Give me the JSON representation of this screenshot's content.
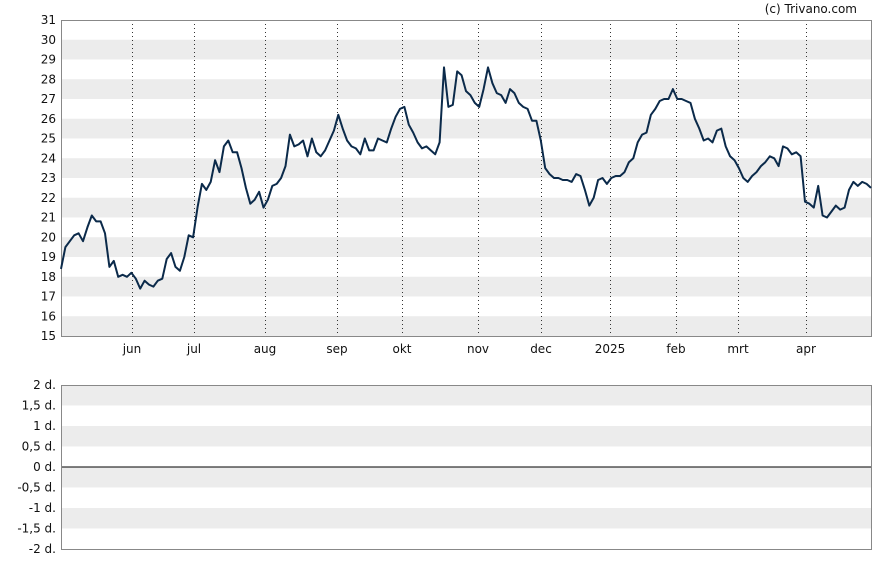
{
  "credit": "(c) Trivano.com",
  "colors": {
    "line": "#0b2a4a",
    "band": "#ececec",
    "grid": "#333333",
    "frame": "#888888"
  },
  "chart_data": [
    {
      "type": "line",
      "title": "",
      "xlabel": "",
      "ylabel": "",
      "ylim": [
        15,
        31
      ],
      "yticks": [
        "15",
        "16",
        "17",
        "18",
        "19",
        "20",
        "21",
        "22",
        "23",
        "24",
        "25",
        "26",
        "27",
        "28",
        "29",
        "30",
        "31"
      ],
      "xticks": [
        "jun",
        "jul",
        "aug",
        "sep",
        "okt",
        "nov",
        "dec",
        "2025",
        "feb",
        "mrt",
        "apr"
      ],
      "grid": "dotted vertical lines at month boundaries, alternating horizontal bands",
      "series": [
        {
          "values": [
            18.4,
            19.5,
            19.8,
            20.1,
            20.2,
            19.8,
            20.5,
            21.1,
            20.8,
            20.8,
            20.2,
            18.5,
            18.8,
            18.0,
            18.1,
            18.0,
            18.2,
            17.9,
            17.4,
            17.8,
            17.6,
            17.5,
            17.8,
            17.9,
            18.9,
            19.2,
            18.5,
            18.3,
            19.0,
            20.1,
            20.0,
            21.5,
            22.7,
            22.4,
            22.8,
            23.9,
            23.3,
            24.6,
            24.9,
            24.3,
            24.3,
            23.5,
            22.5,
            21.7,
            21.9,
            22.3,
            21.5,
            21.9,
            22.6,
            22.7,
            23.0,
            23.6,
            25.2,
            24.6,
            24.7,
            24.9,
            24.1,
            25.0,
            24.3,
            24.1,
            24.4,
            24.9,
            25.4,
            26.2,
            25.5,
            24.9,
            24.6,
            24.5,
            24.2,
            25.0,
            24.4,
            24.4,
            25.0,
            24.9,
            24.8,
            25.5,
            26.1,
            26.5,
            26.6,
            25.7,
            25.3,
            24.8,
            24.5,
            24.6,
            24.4,
            24.2,
            24.8,
            28.6,
            26.6,
            26.7,
            28.4,
            28.2,
            27.4,
            27.2,
            26.8,
            26.6,
            27.5,
            28.6,
            27.8,
            27.3,
            27.2,
            26.8,
            27.5,
            27.3,
            26.8,
            26.6,
            26.5,
            25.9,
            25.9,
            24.9,
            23.5,
            23.2,
            23.0,
            23.0,
            22.9,
            22.9,
            22.8,
            23.2,
            23.1,
            22.4,
            21.6,
            22.0,
            22.9,
            23.0,
            22.7,
            23.0,
            23.1,
            23.1,
            23.3,
            23.8,
            24.0,
            24.8,
            25.2,
            25.3,
            26.2,
            26.5,
            26.9,
            27.0,
            27.0,
            27.5,
            27.0,
            27.0,
            26.9,
            26.8,
            26.0,
            25.5,
            24.9,
            25.0,
            24.8,
            25.4,
            25.5,
            24.6,
            24.1,
            23.9,
            23.5,
            23.0,
            22.8,
            23.1,
            23.3,
            23.6,
            23.8,
            24.1,
            24.0,
            23.6,
            24.6,
            24.5,
            24.2,
            24.3,
            24.1,
            21.8,
            21.7,
            21.5,
            22.6,
            21.1,
            21.0,
            21.3,
            21.6,
            21.4,
            21.5,
            22.4,
            22.8,
            22.6,
            22.8,
            22.7,
            22.5
          ]
        }
      ]
    },
    {
      "type": "line",
      "title": "",
      "xlabel": "",
      "ylabel": "",
      "ylim": [
        -2,
        2
      ],
      "yticks": [
        "2 d.",
        "1,5 d.",
        "1 d.",
        "0,5 d.",
        "0 d.",
        "-0,5 d.",
        "-1 d.",
        "-1,5 d.",
        "-2 d."
      ],
      "grid": "alternating horizontal bands, zero line",
      "series": []
    }
  ]
}
